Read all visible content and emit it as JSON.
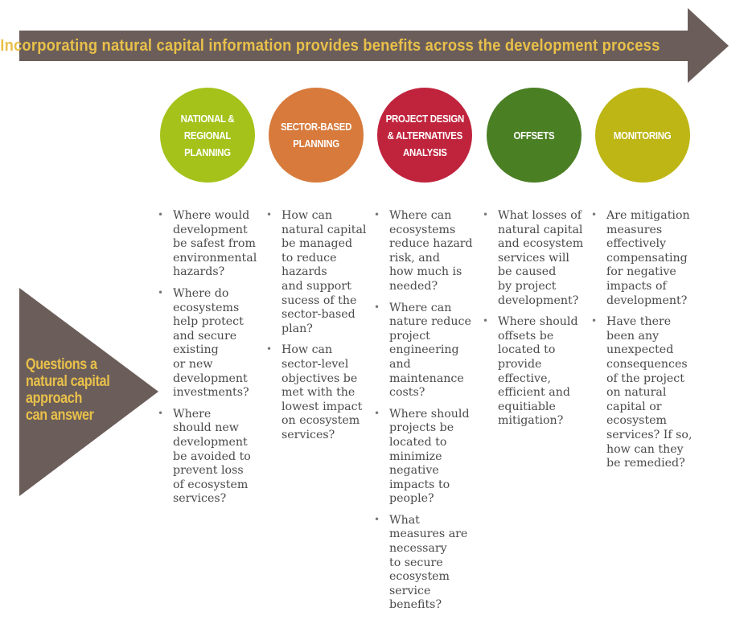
{
  "banner": {
    "title": "Incorporating natural capital information provides benefits across the development process",
    "arrow_color": "#6b5e5a",
    "text_color": "#e9c04a"
  },
  "side": {
    "label": "Questions a\nnatural capital\napproach\ncan answer",
    "triangle_color": "#6b5e5a",
    "text_color": "#e9c04a"
  },
  "stages": [
    {
      "label": "NATIONAL &\nREGIONAL PLANNING",
      "color": "#a4c21a"
    },
    {
      "label": "SECTOR-BASED\nPLANNING",
      "color": "#d77a3c"
    },
    {
      "label": "PROJECT DESIGN\n& ALTERNATIVES\nANALYSIS",
      "color": "#c0243d"
    },
    {
      "label": "OFFSETS",
      "color": "#4a7f24"
    },
    {
      "label": "MONITORING",
      "color": "#bdb614"
    }
  ],
  "questions": [
    [
      "Where would\ndevelopment\nbe safest from\nenvironmental\nhazards?",
      "Where do\necosystems\nhelp protect\nand secure\nexisting\nor new\ndevelopment\ninvestments?",
      "Where\nshould new\ndevelopment\nbe avoided to\nprevent loss\nof ecosystem\nservices?"
    ],
    [
      "How can\nnatural capital\nbe managed\nto reduce\nhazards\nand support\nsucess of the\nsector-based\nplan?",
      "How can\nsector-level\nobjectives be\nmet with the\nlowest impact\non ecosystem\nservices?"
    ],
    [
      "Where can\necosystems\nreduce hazard\nrisk, and\nhow much is\nneeded?",
      "Where can\nnature reduce\nproject\nengineering\nand\nmaintenance\ncosts?",
      "Where should\nprojects be\nlocated to\nminimize\nnegative\nimpacts to\npeople?",
      "What\nmeasures are\nnecessary\nto secure\necosystem\nservice\nbenefits?"
    ],
    [
      "What losses of\nnatural capital\nand ecosystem\nservices will\nbe caused\nby project\ndevelopment?",
      "Where should\noffsets be\nlocated to\nprovide\neffective,\nefficient and\nequitiable\nmitigation?"
    ],
    [
      "Are mitigation\nmeasures\neffectively\ncompensating\nfor negative\nimpacts of\ndevelopment?",
      "Have there\nbeen any\nunexpected\nconsequences\nof the project\non natural\ncapital or\necosystem\nservices? If so,\nhow can they\nbe remedied?"
    ]
  ]
}
